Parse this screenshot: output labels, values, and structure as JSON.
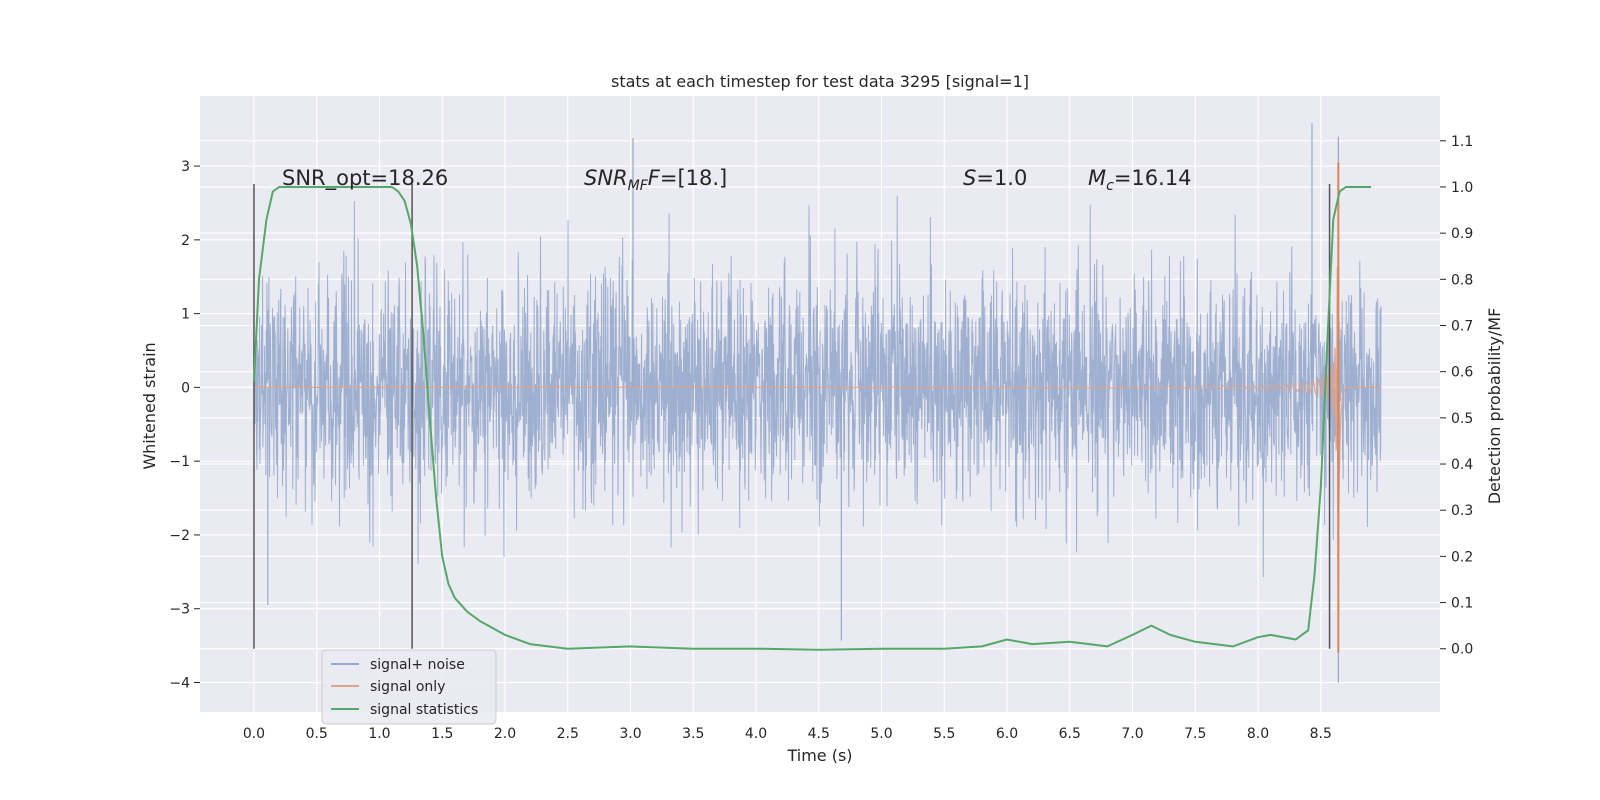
{
  "chart_data": {
    "type": "line",
    "title": "stats at each timestep for test data 3295 [signal=1]",
    "xlabel": "Time (s)",
    "ylabel": "Whitened strain",
    "y2label": "Detection probability/MF",
    "xlim": [
      -0.43,
      9.45
    ],
    "ylim": [
      -4.4,
      3.95
    ],
    "y2lim": [
      -0.137,
      1.197
    ],
    "xticks": [
      0.0,
      0.5,
      1.0,
      1.5,
      2.0,
      2.5,
      3.0,
      3.5,
      4.0,
      4.5,
      5.0,
      5.5,
      6.0,
      6.5,
      7.0,
      7.5,
      8.0,
      8.5
    ],
    "xtick_labels": [
      "0.0",
      "0.5",
      "1.0",
      "1.5",
      "2.0",
      "2.5",
      "3.0",
      "3.5",
      "4.0",
      "4.5",
      "5.0",
      "5.5",
      "6.0",
      "6.5",
      "7.0",
      "7.5",
      "8.0",
      "8.5"
    ],
    "yticks": [
      -4,
      -3,
      -2,
      -1,
      0,
      1,
      2,
      3
    ],
    "ytick_labels": [
      "−4",
      "−3",
      "−2",
      "−1",
      "0",
      "1",
      "2",
      "3"
    ],
    "y2ticks": [
      0.0,
      0.1,
      0.2,
      0.3,
      0.4,
      0.5,
      0.6,
      0.7,
      0.8,
      0.9,
      1.0,
      1.1
    ],
    "y2tick_labels": [
      "0.0",
      "0.1",
      "0.2",
      "0.3",
      "0.4",
      "0.5",
      "0.6",
      "0.7",
      "0.8",
      "0.9",
      "1.0",
      "1.1"
    ],
    "legend": {
      "placement": "lower-left",
      "entries": [
        {
          "label": "signal+ noise",
          "color": "#97a8cc"
        },
        {
          "label": "signal only",
          "color": "#dea389"
        },
        {
          "label": "signal statistics",
          "color": "#55a868"
        }
      ]
    },
    "annotations": {
      "snr_opt": "SNR_opt=18.26",
      "snr_mf_sym": "SNR",
      "snr_mf_sub": "MF",
      "snr_mf_sym2": "F",
      "snr_mf_val": "=[18.]",
      "s_sym": "S",
      "s_val": "=1.0",
      "mc_sym": "M",
      "mc_sub": "c",
      "mc_val": "=16.14"
    },
    "vertical_markers_s": [
      0.0,
      1.26,
      8.57
    ],
    "noise": {
      "name": "signal+ noise",
      "t_start": 0.0,
      "t_end": 8.98,
      "core_amplitude": 0.95,
      "spike_max": 3.4,
      "spike_min": -3.45,
      "notable_spikes": [
        {
          "t": 3.02,
          "v": 3.38
        },
        {
          "t": 8.43,
          "v": 3.58
        },
        {
          "t": 8.64,
          "v": 3.4
        },
        {
          "t": 8.64,
          "v": -4.0
        },
        {
          "t": 4.68,
          "v": -3.43
        },
        {
          "t": 0.11,
          "v": -2.95
        }
      ]
    },
    "signal": {
      "name": "signal only",
      "type": "chirp",
      "onset_s": 4.5,
      "merger_s": 8.64,
      "peak_positive": 3.05,
      "peak_negative": -3.6,
      "ringdown_end_s": 8.7,
      "t_end": 8.98
    },
    "statistic": {
      "name": "signal statistics",
      "t": [
        0.0,
        0.04,
        0.1,
        0.15,
        0.2,
        0.3,
        0.5,
        0.8,
        1.0,
        1.1,
        1.15,
        1.2,
        1.25,
        1.3,
        1.35,
        1.4,
        1.45,
        1.5,
        1.55,
        1.6,
        1.7,
        1.8,
        2.0,
        2.2,
        2.5,
        3.0,
        3.5,
        4.0,
        4.5,
        5.0,
        5.5,
        5.8,
        6.0,
        6.2,
        6.5,
        6.8,
        7.0,
        7.15,
        7.3,
        7.5,
        7.8,
        8.0,
        8.1,
        8.3,
        8.4,
        8.45,
        8.5,
        8.55,
        8.6,
        8.65,
        8.7,
        8.8,
        8.9
      ],
      "values": [
        0.58,
        0.8,
        0.93,
        0.99,
        1.0,
        1.0,
        1.0,
        1.0,
        1.0,
        1.0,
        0.99,
        0.97,
        0.92,
        0.83,
        0.68,
        0.5,
        0.33,
        0.2,
        0.14,
        0.11,
        0.08,
        0.06,
        0.03,
        0.01,
        0.0,
        0.005,
        0.0,
        0.0,
        -0.002,
        0.0,
        0.0,
        0.005,
        0.02,
        0.01,
        0.015,
        0.005,
        0.03,
        0.05,
        0.03,
        0.015,
        0.005,
        0.025,
        0.03,
        0.02,
        0.04,
        0.16,
        0.35,
        0.65,
        0.93,
        0.99,
        1.0,
        1.0,
        1.0
      ]
    }
  }
}
